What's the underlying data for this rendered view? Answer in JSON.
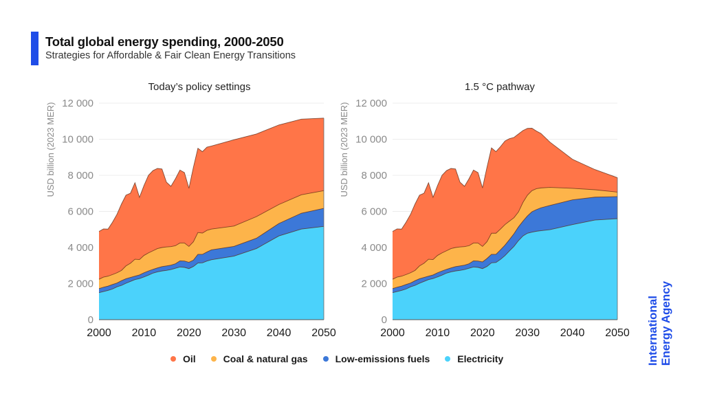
{
  "header": {
    "title": "Total global energy spending, 2000-2050",
    "subtitle": "Strategies for Affordable & Fair Clean Energy Transitions",
    "accent_color": "#1F4DE8"
  },
  "logo": {
    "line1": "International",
    "line2": "Energy Agency",
    "color": "#1F4DE8"
  },
  "legend": [
    {
      "name": "Oil",
      "color": "#FF7548"
    },
    {
      "name": "Coal & natural gas",
      "color": "#FDB44A"
    },
    {
      "name": "Low-emissions fuels",
      "color": "#3C78D8"
    },
    {
      "name": "Electricity",
      "color": "#4BD2FB"
    }
  ],
  "chart_data": [
    {
      "type": "area",
      "stacked": true,
      "title": "Today’s policy settings",
      "xlabel": "",
      "ylabel": "USD billion (2023 MER)",
      "xlim": [
        2000,
        2050
      ],
      "ylim": [
        0,
        12000
      ],
      "x_ticks": [
        2000,
        2010,
        2020,
        2030,
        2040,
        2050
      ],
      "y_ticks": [
        0,
        2000,
        4000,
        6000,
        8000,
        10000,
        12000
      ],
      "y_tick_labels": [
        "0",
        "2 000",
        "4 000",
        "6 000",
        "8 000",
        "10 000",
        "12 000"
      ],
      "grid": "horizontal",
      "legend": "bottom",
      "note": "Cumulative stack top values per layer",
      "x": [
        2000,
        2001,
        2002,
        2003,
        2004,
        2005,
        2006,
        2007,
        2008,
        2009,
        2010,
        2011,
        2012,
        2013,
        2014,
        2015,
        2016,
        2017,
        2018,
        2019,
        2020,
        2021,
        2022,
        2023,
        2024,
        2025,
        2030,
        2035,
        2040,
        2045,
        2050
      ],
      "series": [
        {
          "name": "Electricity",
          "cumulative_top": [
            1500,
            1560,
            1620,
            1700,
            1820,
            1900,
            2020,
            2120,
            2220,
            2280,
            2370,
            2470,
            2580,
            2650,
            2700,
            2730,
            2780,
            2850,
            2920,
            2900,
            2830,
            2950,
            3140,
            3150,
            3250,
            3320,
            3520,
            3940,
            4640,
            5020,
            5170
          ]
        },
        {
          "name": "Low-emissions fuels",
          "cumulative_top": [
            1720,
            1800,
            1860,
            1950,
            2030,
            2160,
            2270,
            2340,
            2410,
            2480,
            2600,
            2700,
            2790,
            2870,
            2940,
            2980,
            3020,
            3100,
            3260,
            3250,
            3180,
            3300,
            3620,
            3620,
            3750,
            3870,
            4060,
            4510,
            5330,
            5900,
            6170
          ]
        },
        {
          "name": "Coal & natural gas",
          "cumulative_top": [
            2240,
            2360,
            2410,
            2500,
            2600,
            2730,
            2980,
            3130,
            3350,
            3330,
            3560,
            3700,
            3820,
            3940,
            4000,
            4030,
            4050,
            4100,
            4250,
            4250,
            4060,
            4320,
            4830,
            4800,
            4950,
            5020,
            5190,
            5710,
            6380,
            6920,
            7150
          ]
        },
        {
          "name": "Oil",
          "cumulative_top": [
            4890,
            5030,
            5020,
            5400,
            5840,
            6410,
            6900,
            7010,
            7590,
            6780,
            7430,
            8000,
            8260,
            8380,
            8350,
            7620,
            7390,
            7810,
            8290,
            8150,
            7280,
            8450,
            9500,
            9310,
            9560,
            9620,
            9970,
            10290,
            10790,
            11110,
            11170
          ]
        }
      ]
    },
    {
      "type": "area",
      "stacked": true,
      "title": "1.5 °C pathway",
      "xlabel": "",
      "ylabel": "USD billion (2023 MER)",
      "xlim": [
        2000,
        2050
      ],
      "ylim": [
        0,
        12000
      ],
      "x_ticks": [
        2000,
        2010,
        2020,
        2030,
        2040,
        2050
      ],
      "y_ticks": [
        0,
        2000,
        4000,
        6000,
        8000,
        10000,
        12000
      ],
      "y_tick_labels": [
        "0",
        "2 000",
        "4 000",
        "6 000",
        "8 000",
        "10 000",
        "12 000"
      ],
      "grid": "horizontal",
      "legend": "bottom",
      "note": "Cumulative stack top values per layer",
      "x": [
        2000,
        2001,
        2002,
        2003,
        2004,
        2005,
        2006,
        2007,
        2008,
        2009,
        2010,
        2011,
        2012,
        2013,
        2014,
        2015,
        2016,
        2017,
        2018,
        2019,
        2020,
        2021,
        2022,
        2023,
        2024,
        2025,
        2026,
        2027,
        2028,
        2029,
        2030,
        2031,
        2032,
        2033,
        2035,
        2040,
        2045,
        2050
      ],
      "series": [
        {
          "name": "Electricity",
          "cumulative_top": [
            1500,
            1560,
            1620,
            1700,
            1820,
            1900,
            2020,
            2120,
            2220,
            2280,
            2370,
            2470,
            2580,
            2650,
            2700,
            2730,
            2780,
            2850,
            2920,
            2900,
            2830,
            2950,
            3150,
            3170,
            3340,
            3550,
            3810,
            4060,
            4380,
            4640,
            4790,
            4850,
            4900,
            4930,
            4990,
            5270,
            5520,
            5600
          ]
        },
        {
          "name": "Low-emissions fuels",
          "cumulative_top": [
            1720,
            1800,
            1860,
            1950,
            2030,
            2160,
            2270,
            2340,
            2410,
            2480,
            2600,
            2700,
            2790,
            2870,
            2940,
            2980,
            3020,
            3100,
            3260,
            3250,
            3200,
            3390,
            3620,
            3620,
            3870,
            4130,
            4440,
            4760,
            5140,
            5460,
            5750,
            5980,
            6100,
            6200,
            6330,
            6640,
            6790,
            6820
          ]
        },
        {
          "name": "Coal & natural gas",
          "cumulative_top": [
            2240,
            2360,
            2410,
            2500,
            2600,
            2730,
            2980,
            3130,
            3350,
            3330,
            3560,
            3700,
            3820,
            3940,
            4000,
            4030,
            4050,
            4100,
            4250,
            4250,
            4060,
            4320,
            4790,
            4790,
            5020,
            5270,
            5460,
            5650,
            5970,
            6500,
            6900,
            7150,
            7260,
            7300,
            7330,
            7280,
            7200,
            7070
          ]
        },
        {
          "name": "Oil",
          "cumulative_top": [
            4890,
            5030,
            5020,
            5400,
            5840,
            6410,
            6900,
            7010,
            7590,
            6780,
            7430,
            8000,
            8260,
            8380,
            8350,
            7620,
            7390,
            7810,
            8290,
            8150,
            7300,
            8450,
            9520,
            9310,
            9590,
            9900,
            10030,
            10100,
            10290,
            10480,
            10600,
            10610,
            10450,
            10320,
            9840,
            8890,
            8320,
            7870
          ]
        }
      ]
    }
  ]
}
